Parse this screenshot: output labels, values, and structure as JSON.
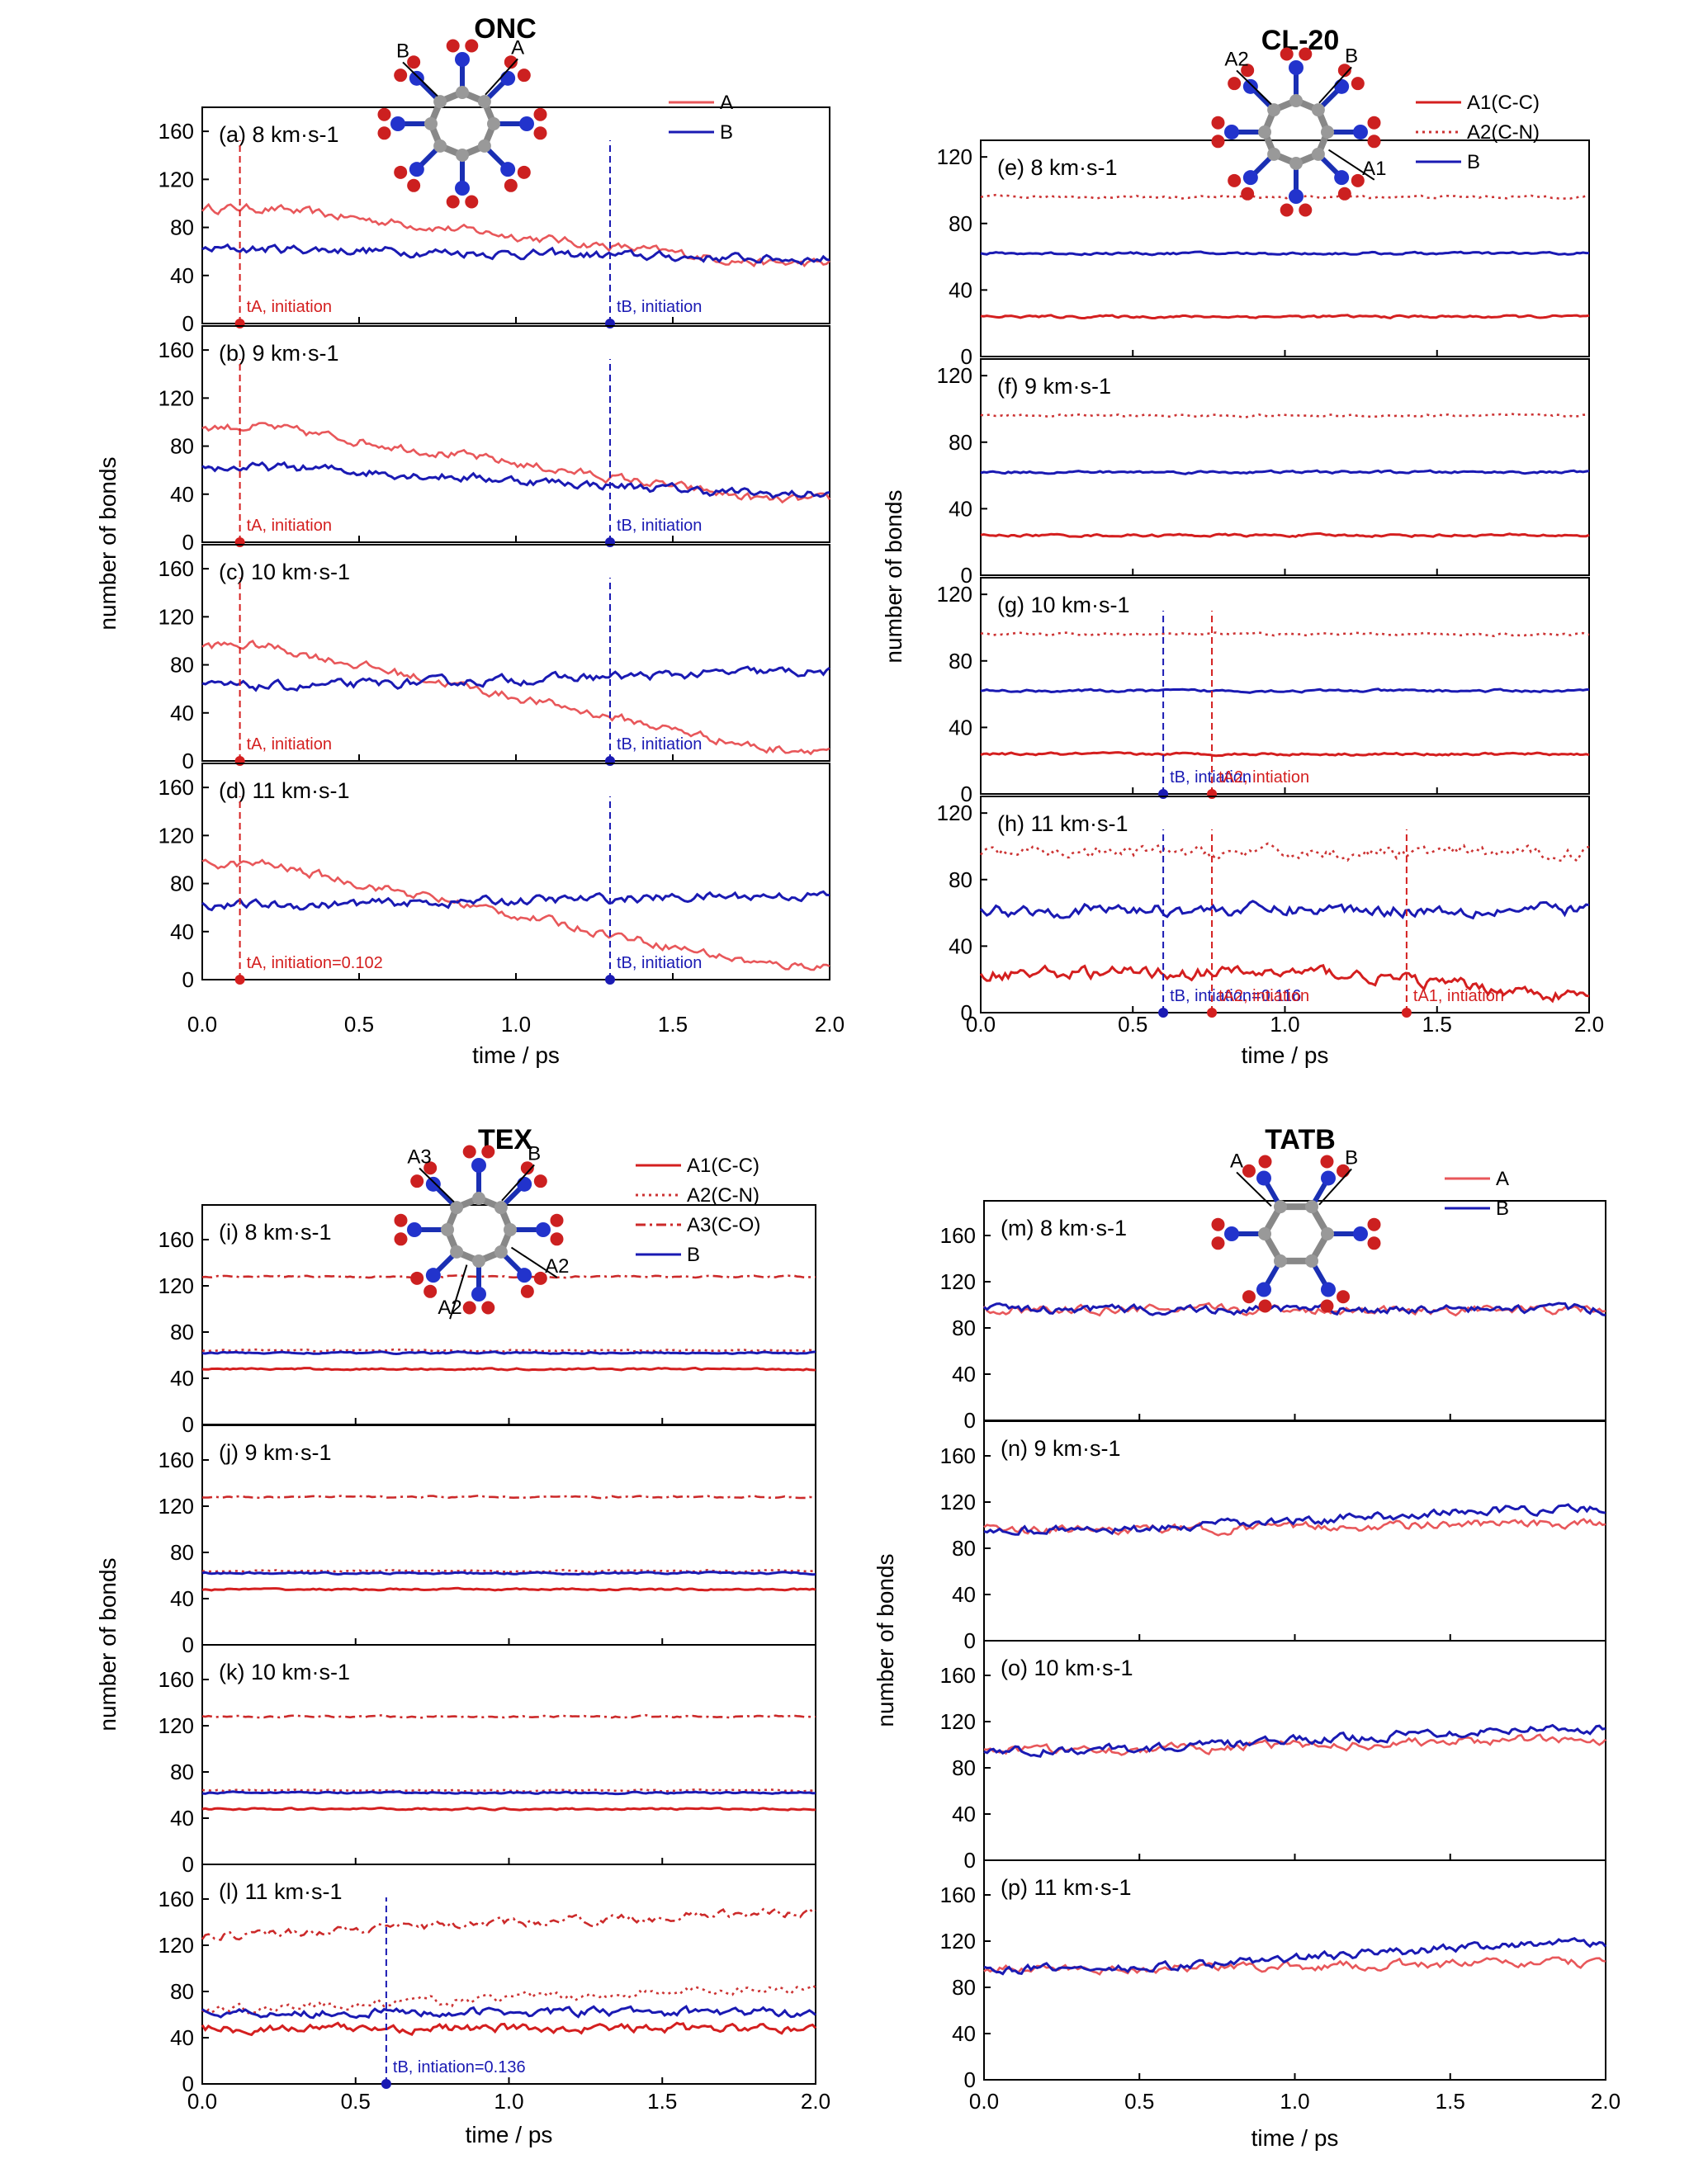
{
  "colors": {
    "A": "#e8575a",
    "A1": "#d41f1f",
    "A2": "#cc3333",
    "A3": "#cc2a2a",
    "B": "#1a1ab3"
  },
  "chart_data": [
    {
      "title": "ONC",
      "type": "line",
      "ylabel": "number of bonds",
      "xlabel": "time / ps",
      "xlim": [
        0,
        2
      ],
      "xticks": [
        "0.0",
        "0.5",
        "1.0",
        "1.5",
        "2.0"
      ],
      "ylim": [
        0,
        180
      ],
      "yticks": [
        "0",
        "40",
        "80",
        "120",
        "160"
      ],
      "legend_position": "top-right",
      "legend": [
        "A",
        "B"
      ],
      "molecule_labels": [
        "B",
        "A"
      ],
      "panels": [
        {
          "label": "(a) 8 km·s-1",
          "series": [
            {
              "name": "A",
              "style": "solid",
              "values": []
            },
            {
              "name": "B",
              "style": "solid",
              "values": []
            }
          ],
          "annotations": [
            "tA, initiation",
            "tB, initiation"
          ]
        },
        {
          "label": "(b) 9 km·s-1",
          "series": [
            {
              "name": "A",
              "style": "solid",
              "values": []
            },
            {
              "name": "B",
              "style": "solid",
              "values": []
            }
          ],
          "annotations": [
            "tA, initiation",
            "tB, initiation"
          ]
        },
        {
          "label": "(c) 10 km·s-1",
          "series": [
            {
              "name": "A",
              "style": "solid",
              "values": []
            },
            {
              "name": "B",
              "style": "solid",
              "values": []
            }
          ],
          "annotations": [
            "tA, initiation",
            "tB, initiation"
          ]
        },
        {
          "label": "(d) 11 km·s-1",
          "series": [
            {
              "name": "A",
              "style": "solid",
              "values": []
            },
            {
              "name": "B",
              "style": "solid",
              "values": []
            }
          ],
          "annotations": [
            "tA, initiation=0.102",
            "tB, initiation"
          ]
        }
      ]
    },
    {
      "title": "CL-20",
      "type": "line",
      "ylabel": "number of bonds",
      "xlabel": "time / ps",
      "xlim": [
        0,
        2
      ],
      "xticks": [
        "0.0",
        "0.5",
        "1.0",
        "1.5",
        "2.0"
      ],
      "ylim": [
        0,
        130
      ],
      "yticks": [
        "0",
        "40",
        "80",
        "120"
      ],
      "legend_position": "top-right",
      "legend": [
        "A1(C-C)",
        "A2(C-N)",
        "B"
      ],
      "molecule_labels": [
        "A2",
        "B",
        "A1"
      ],
      "panels": [
        {
          "label": "(e) 8 km·s-1",
          "series": [
            {
              "name": "A1(C-C)",
              "style": "solid",
              "values": []
            },
            {
              "name": "A2(C-N)",
              "style": "dotted",
              "values": []
            },
            {
              "name": "B",
              "style": "solid",
              "values": []
            }
          ],
          "annotations": []
        },
        {
          "label": "(f) 9 km·s-1",
          "series": [
            {
              "name": "A1(C-C)",
              "style": "solid",
              "values": []
            },
            {
              "name": "A2(C-N)",
              "style": "dotted",
              "values": []
            },
            {
              "name": "B",
              "style": "solid",
              "values": []
            }
          ],
          "annotations": []
        },
        {
          "label": "(g) 10 km·s-1",
          "series": [
            {
              "name": "A1(C-C)",
              "style": "solid",
              "values": []
            },
            {
              "name": "A2(C-N)",
              "style": "dotted",
              "values": []
            },
            {
              "name": "B",
              "style": "solid",
              "values": []
            }
          ],
          "annotations": [
            "tB, intiation",
            "tA2, intiation"
          ]
        },
        {
          "label": "(h) 11 km·s-1",
          "series": [
            {
              "name": "A1(C-C)",
              "style": "solid",
              "values": []
            },
            {
              "name": "A2(C-N)",
              "style": "dotted",
              "values": []
            },
            {
              "name": "B",
              "style": "solid",
              "values": []
            }
          ],
          "annotations": [
            "tB, intiation=0.116",
            "tA2, intiation",
            "tA1, intiation"
          ]
        }
      ]
    },
    {
      "title": "TEX",
      "type": "line",
      "ylabel": "number of bonds",
      "xlabel": "time / ps",
      "xlim": [
        0,
        2
      ],
      "xticks": [
        "0.0",
        "0.5",
        "1.0",
        "1.5",
        "2.0"
      ],
      "ylim": [
        0,
        190
      ],
      "yticks": [
        "0",
        "40",
        "80",
        "120",
        "160"
      ],
      "legend_position": "top-right",
      "legend": [
        "A1(C-C)",
        "A2(C-N)",
        "A3(C-O)",
        "B"
      ],
      "molecule_labels": [
        "A3",
        "B",
        "A2",
        "A2"
      ],
      "panels": [
        {
          "label": "(i) 8 km·s-1",
          "series": [
            {
              "name": "A1(C-C)",
              "style": "solid",
              "values": []
            },
            {
              "name": "A2(C-N)",
              "style": "dotted",
              "values": []
            },
            {
              "name": "A3(C-O)",
              "style": "dashdot",
              "values": []
            },
            {
              "name": "B",
              "style": "solid",
              "values": []
            }
          ],
          "annotations": []
        },
        {
          "label": "(j) 9 km·s-1",
          "series": [
            {
              "name": "A1(C-C)",
              "style": "solid",
              "values": []
            },
            {
              "name": "A2(C-N)",
              "style": "dotted",
              "values": []
            },
            {
              "name": "A3(C-O)",
              "style": "dashdot",
              "values": []
            },
            {
              "name": "B",
              "style": "solid",
              "values": []
            }
          ],
          "annotations": []
        },
        {
          "label": "(k) 10 km·s-1",
          "series": [
            {
              "name": "A1(C-C)",
              "style": "solid",
              "values": []
            },
            {
              "name": "A2(C-N)",
              "style": "dotted",
              "values": []
            },
            {
              "name": "A3(C-O)",
              "style": "dashdot",
              "values": []
            },
            {
              "name": "B",
              "style": "solid",
              "values": []
            }
          ],
          "annotations": []
        },
        {
          "label": "(l) 11 km·s-1",
          "series": [
            {
              "name": "A1(C-C)",
              "style": "solid",
              "values": []
            },
            {
              "name": "A2(C-N)",
              "style": "dotted",
              "values": []
            },
            {
              "name": "A3(C-O)",
              "style": "dashdot",
              "values": []
            },
            {
              "name": "B",
              "style": "solid",
              "values": []
            }
          ],
          "annotations": [
            "tB, intiation=0.136"
          ]
        }
      ]
    },
    {
      "title": "TATB",
      "type": "line",
      "ylabel": "number of bonds",
      "xlabel": "time / ps",
      "xlim": [
        0,
        2
      ],
      "xticks": [
        "0.0",
        "0.5",
        "1.0",
        "1.5",
        "2.0"
      ],
      "ylim": [
        0,
        190
      ],
      "yticks": [
        "0",
        "40",
        "80",
        "120",
        "160"
      ],
      "legend_position": "top-right",
      "legend": [
        "A",
        "B"
      ],
      "molecule_labels": [
        "A",
        "B"
      ],
      "panels": [
        {
          "label": "(m) 8 km·s-1",
          "series": [
            {
              "name": "A",
              "style": "solid",
              "values": []
            },
            {
              "name": "B",
              "style": "solid",
              "values": []
            }
          ],
          "annotations": []
        },
        {
          "label": "(n) 9 km·s-1",
          "series": [
            {
              "name": "A",
              "style": "solid",
              "values": []
            },
            {
              "name": "B",
              "style": "solid",
              "values": []
            }
          ],
          "annotations": []
        },
        {
          "label": "(o) 10 km·s-1",
          "series": [
            {
              "name": "A",
              "style": "solid",
              "values": []
            },
            {
              "name": "B",
              "style": "solid",
              "values": []
            }
          ],
          "annotations": []
        },
        {
          "label": "(p) 11 km·s-1",
          "series": [
            {
              "name": "A",
              "style": "solid",
              "values": []
            },
            {
              "name": "B",
              "style": "solid",
              "values": []
            }
          ],
          "annotations": []
        }
      ]
    }
  ]
}
